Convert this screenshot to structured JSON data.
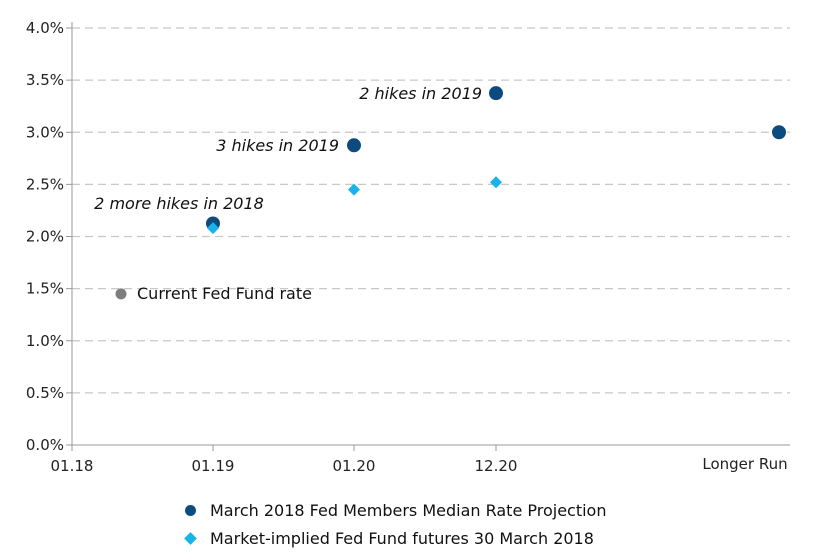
{
  "colors": {
    "fed_projection": "#0d4a7e",
    "market_futures": "#17b3ea",
    "current_rate": "#7d7d7d",
    "grid": "#c8c8c8",
    "axis": "#999999"
  },
  "chart_data": {
    "type": "scatter",
    "x_categories": [
      "01.18",
      "01.19",
      "01.20",
      "12.20",
      "Longer Run"
    ],
    "y_ticks": [
      "0.0%",
      "0.5%",
      "1.0%",
      "1.5%",
      "2.0%",
      "2.5%",
      "3.0%",
      "3.5%",
      "4.0%"
    ],
    "ylim": [
      0,
      4
    ],
    "grid": "horizontal dashed",
    "legend_position": "bottom",
    "series": [
      {
        "name": "March 2018 Fed Members Median Rate Projection",
        "marker": "circle",
        "points": [
          {
            "x": "01.19",
            "y": 2.125
          },
          {
            "x": "01.20",
            "y": 2.875
          },
          {
            "x": "12.20",
            "y": 3.375
          },
          {
            "x": "Longer Run",
            "y": 3.0
          }
        ]
      },
      {
        "name": "Market-implied Fed Fund futures 30 March 2018",
        "marker": "diamond",
        "points": [
          {
            "x": "01.19",
            "y": 2.08
          },
          {
            "x": "01.20",
            "y": 2.45
          },
          {
            "x": "12.20",
            "y": 2.52
          }
        ]
      }
    ],
    "current_rate": {
      "x": "Apr 2018",
      "y": 1.45,
      "label": "Current Fed Fund rate"
    },
    "annotations": [
      {
        "text": "2 more hikes in 2018",
        "near": "01.19"
      },
      {
        "text": "3 hikes in 2019",
        "near": "01.20"
      },
      {
        "text": "2 hikes in 2019",
        "near": "12.20"
      }
    ]
  }
}
